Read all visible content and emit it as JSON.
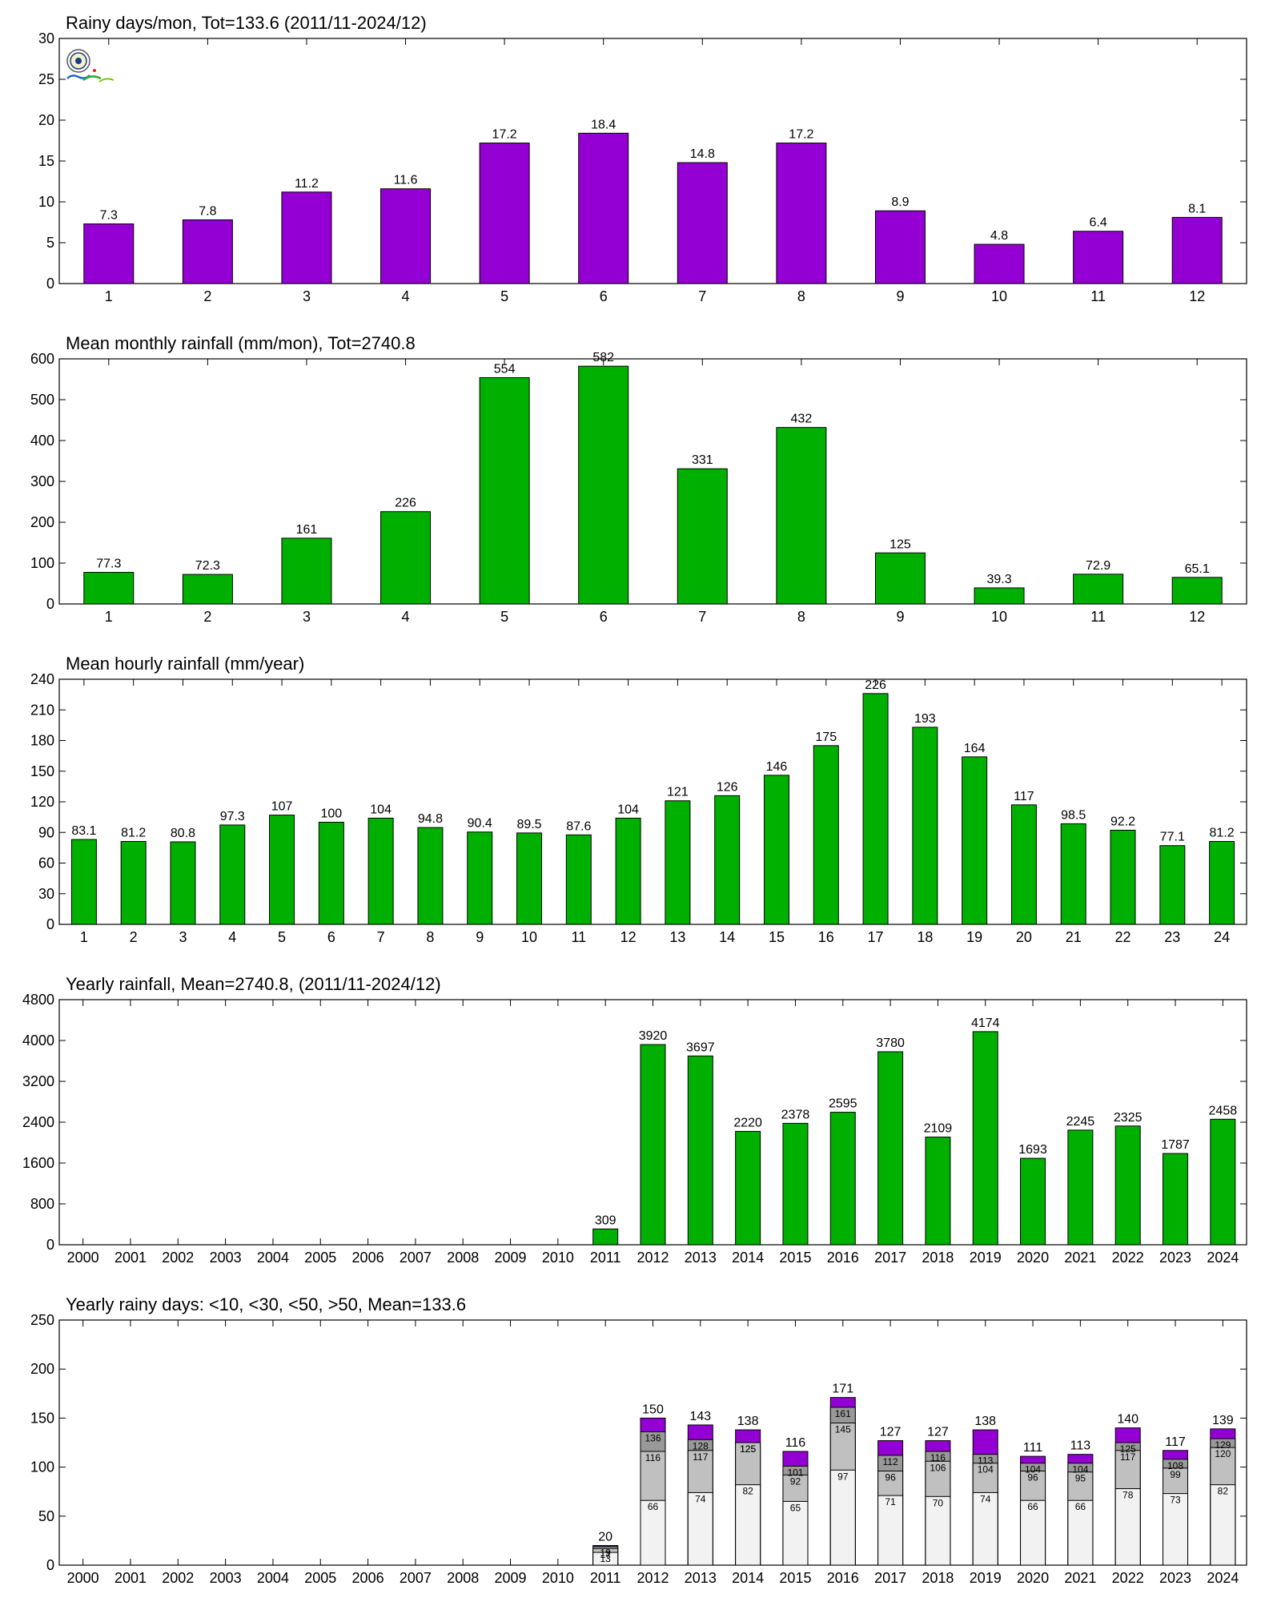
{
  "chart_data": [
    {
      "type": "bar",
      "title": "Rainy days/mon, Tot=133.6 (2011/11-2024/12)",
      "categories": [
        "1",
        "2",
        "3",
        "4",
        "5",
        "6",
        "7",
        "8",
        "9",
        "10",
        "11",
        "12"
      ],
      "values": [
        7.3,
        7.8,
        11.2,
        11.6,
        17.2,
        18.4,
        14.8,
        17.2,
        8.9,
        4.8,
        6.4,
        8.1
      ],
      "labels": [
        "7.3",
        "7.8",
        "11.2",
        "11.6",
        "17.2",
        "18.4",
        "14.8",
        "17.2",
        "8.9",
        "4.8",
        "6.4",
        "8.1"
      ],
      "ylim": [
        0,
        30
      ],
      "yticks": [
        0,
        5,
        10,
        15,
        20,
        25,
        30
      ],
      "color": "#9400d3",
      "grid": false
    },
    {
      "type": "bar",
      "title": "Mean monthly rainfall (mm/mon), Tot=2740.8",
      "categories": [
        "1",
        "2",
        "3",
        "4",
        "5",
        "6",
        "7",
        "8",
        "9",
        "10",
        "11",
        "12"
      ],
      "values": [
        77.3,
        72.3,
        161,
        226,
        554,
        582,
        331,
        432,
        125,
        39.3,
        72.9,
        65.1
      ],
      "labels": [
        "77.3",
        "72.3",
        "161",
        "226",
        "554",
        "582",
        "331",
        "432",
        "125",
        "39.3",
        "72.9",
        "65.1"
      ],
      "ylim": [
        0,
        600
      ],
      "yticks": [
        0,
        100,
        200,
        300,
        400,
        500,
        600
      ],
      "color": "#00b000",
      "grid": false
    },
    {
      "type": "bar",
      "title": "Mean hourly rainfall (mm/year)",
      "categories": [
        "1",
        "2",
        "3",
        "4",
        "5",
        "6",
        "7",
        "8",
        "9",
        "10",
        "11",
        "12",
        "13",
        "14",
        "15",
        "16",
        "17",
        "18",
        "19",
        "20",
        "21",
        "22",
        "23",
        "24"
      ],
      "values": [
        83.1,
        81.2,
        80.8,
        97.3,
        107,
        100,
        104,
        94.8,
        90.4,
        89.5,
        87.6,
        104,
        121,
        126,
        146,
        175,
        226,
        193,
        164,
        117,
        98.5,
        92.2,
        77.1,
        81.2
      ],
      "labels": [
        "83.1",
        "81.2",
        "80.8",
        "97.3",
        "107",
        "100",
        "104",
        "94.8",
        "90.4",
        "89.5",
        "87.6",
        "104",
        "121",
        "126",
        "146",
        "175",
        "226",
        "193",
        "164",
        "117",
        "98.5",
        "92.2",
        "77.1",
        "81.2"
      ],
      "ylim": [
        0,
        240
      ],
      "yticks": [
        0,
        30,
        60,
        90,
        120,
        150,
        180,
        210,
        240
      ],
      "color": "#00b000",
      "grid": false
    },
    {
      "type": "bar",
      "title": "Yearly rainfall, Mean=2740.8, (2011/11-2024/12)",
      "categories": [
        "2000",
        "2001",
        "2002",
        "2003",
        "2004",
        "2005",
        "2006",
        "2007",
        "2008",
        "2009",
        "2010",
        "2011",
        "2012",
        "2013",
        "2014",
        "2015",
        "2016",
        "2017",
        "2018",
        "2019",
        "2020",
        "2021",
        "2022",
        "2023",
        "2024"
      ],
      "values": [
        null,
        null,
        null,
        null,
        null,
        null,
        null,
        null,
        null,
        null,
        null,
        309,
        3920,
        3697,
        2220,
        2378,
        2595,
        3780,
        2109,
        4174,
        1693,
        2245,
        2325,
        1787,
        2458
      ],
      "labels": [
        null,
        null,
        null,
        null,
        null,
        null,
        null,
        null,
        null,
        null,
        null,
        "309",
        "3920",
        "3697",
        "2220",
        "2378",
        "2595",
        "3780",
        "2109",
        "4174",
        "1693",
        "2245",
        "2325",
        "1787",
        "2458"
      ],
      "ylim": [
        0,
        4800
      ],
      "yticks": [
        0,
        800,
        1600,
        2400,
        3200,
        4000,
        4800
      ],
      "color": "#00b000",
      "grid": false
    },
    {
      "type": "bar",
      "stacked": true,
      "title": "Yearly rainy days: <10, <30, <50, >50, Mean=133.6",
      "categories": [
        "2000",
        "2001",
        "2002",
        "2003",
        "2004",
        "2005",
        "2006",
        "2007",
        "2008",
        "2009",
        "2010",
        "2011",
        "2012",
        "2013",
        "2014",
        "2015",
        "2016",
        "2017",
        "2018",
        "2019",
        "2020",
        "2021",
        "2022",
        "2023",
        "2024"
      ],
      "cumulative_series": [
        {
          "values": [
            null,
            null,
            null,
            null,
            null,
            null,
            null,
            null,
            null,
            null,
            null,
            13,
            66,
            74,
            82,
            65,
            97,
            71,
            70,
            74,
            66,
            66,
            78,
            73,
            82
          ],
          "color": "#f2f2f2"
        },
        {
          "values": [
            null,
            null,
            null,
            null,
            null,
            null,
            null,
            null,
            null,
            null,
            null,
            17,
            116,
            117,
            125,
            92,
            145,
            96,
            106,
            104,
            96,
            95,
            117,
            99,
            120
          ],
          "color": "#c0c0c0"
        },
        {
          "values": [
            null,
            null,
            null,
            null,
            null,
            null,
            null,
            null,
            null,
            null,
            null,
            19,
            136,
            128,
            125,
            101,
            161,
            112,
            116,
            113,
            104,
            104,
            125,
            108,
            129
          ],
          "color": "#999999"
        },
        {
          "values": [
            null,
            null,
            null,
            null,
            null,
            null,
            null,
            null,
            null,
            null,
            null,
            20,
            150,
            143,
            138,
            116,
            171,
            127,
            127,
            138,
            111,
            113,
            140,
            117,
            139
          ],
          "color": "#9400d3"
        }
      ],
      "totals": [
        null,
        null,
        null,
        null,
        null,
        null,
        null,
        null,
        null,
        null,
        null,
        "20",
        "150",
        "143",
        "138",
        "116",
        "171",
        "127",
        "127",
        "138",
        "111",
        "113",
        "140",
        "117",
        "139"
      ],
      "ylim": [
        0,
        250
      ],
      "yticks": [
        0,
        50,
        100,
        150,
        200,
        250
      ],
      "grid": false
    }
  ]
}
